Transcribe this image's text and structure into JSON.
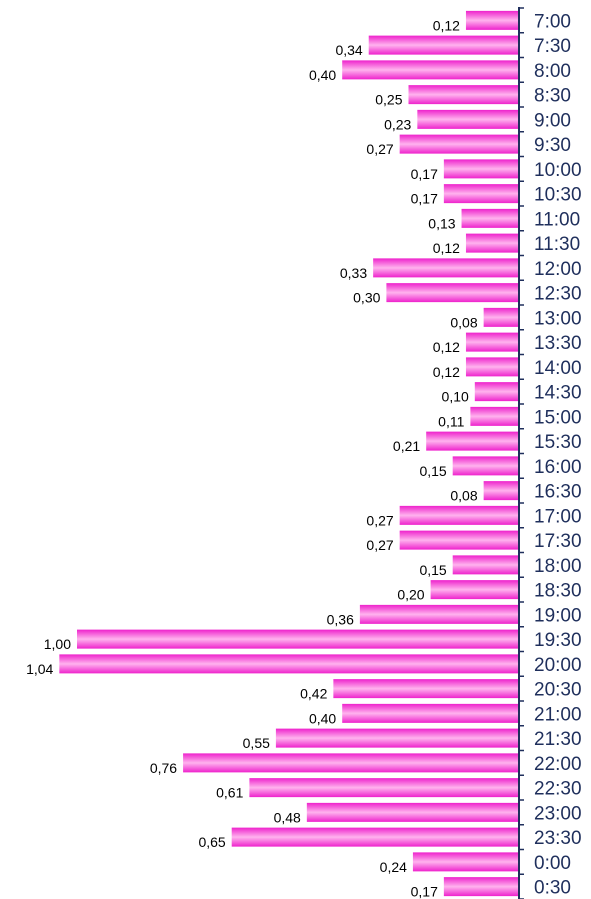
{
  "chart_data": {
    "type": "bar",
    "orientation": "horizontal",
    "categories": [
      "7:00",
      "7:30",
      "8:00",
      "8:30",
      "9:00",
      "9:30",
      "10:00",
      "10:30",
      "11:00",
      "11:30",
      "12:00",
      "12:30",
      "13:00",
      "13:30",
      "14:00",
      "14:30",
      "15:00",
      "15:30",
      "16:00",
      "16:30",
      "17:00",
      "17:30",
      "18:00",
      "18:30",
      "19:00",
      "19:30",
      "20:00",
      "20:30",
      "21:00",
      "21:30",
      "22:00",
      "22:30",
      "23:00",
      "23:30",
      "0:00",
      "0:30"
    ],
    "values": [
      0.12,
      0.34,
      0.4,
      0.25,
      0.23,
      0.27,
      0.17,
      0.17,
      0.13,
      0.12,
      0.33,
      0.3,
      0.08,
      0.12,
      0.12,
      0.1,
      0.11,
      0.21,
      0.15,
      0.08,
      0.27,
      0.27,
      0.15,
      0.2,
      0.36,
      1.0,
      1.04,
      0.42,
      0.4,
      0.55,
      0.76,
      0.61,
      0.48,
      0.65,
      0.24,
      0.17
    ],
    "value_labels": [
      "0,12",
      "0,34",
      "0,40",
      "0,25",
      "0,23",
      "0,27",
      "0,17",
      "0,17",
      "0,13",
      "0,12",
      "0,33",
      "0,30",
      "0,08",
      "0,12",
      "0,12",
      "0,10",
      "0,11",
      "0,21",
      "0,15",
      "0,08",
      "0,27",
      "0,27",
      "0,15",
      "0,20",
      "0,36",
      "1,00",
      "1,04",
      "0,42",
      "0,40",
      "0,55",
      "0,76",
      "0,61",
      "0,48",
      "0,65",
      "0,24",
      "0,17"
    ],
    "title": "",
    "xlabel": "",
    "ylabel": "",
    "category_axis_position": "right",
    "grid": false,
    "legend": "none",
    "colors": {
      "bar_edge": "#ee22cc",
      "bar_center": "#ffb3ee",
      "axis": "#1f2f5c",
      "tick_label": "#1f2f5c",
      "value_label": "#000000"
    }
  }
}
